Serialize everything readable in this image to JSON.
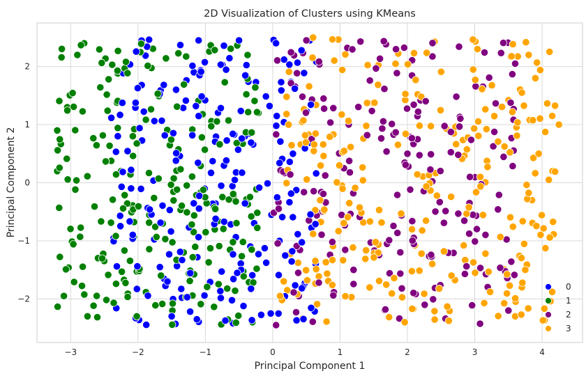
{
  "chart_data": {
    "type": "scatter",
    "title": "2D Visualization of Clusters using KMeans",
    "xlabel": "Principal Component 1",
    "ylabel": "Principal Component 2",
    "xlim": [
      -3.5,
      4.6
    ],
    "ylim": [
      -2.75,
      2.75
    ],
    "xticks": [
      -3,
      -2,
      -1,
      0,
      1,
      2,
      3,
      4
    ],
    "yticks": [
      -2,
      -1,
      0,
      1,
      2
    ],
    "grid": true,
    "background": "#eaeaf2",
    "legend": {
      "placement": "lower-right"
    },
    "series": [
      {
        "name": "0",
        "color": "#0000ff",
        "count": 220,
        "x_range": [
          -2.4,
          0.65
        ],
        "y_range": [
          -2.45,
          2.5
        ],
        "points": [
          [
            -0.5,
            2.45
          ],
          [
            -1.1,
            2.45
          ],
          [
            0.55,
            2.45
          ],
          [
            -0.3,
            -2.4
          ],
          [
            0.1,
            -1.0
          ],
          [
            0.3,
            0.5
          ],
          [
            -1.5,
            -2.3
          ],
          [
            -2.3,
            0.8
          ]
        ]
      },
      {
        "name": "1",
        "color": "#008000",
        "count": 240,
        "x_range": [
          -3.2,
          -0.2
        ],
        "y_range": [
          -2.45,
          2.45
        ],
        "points": [
          [
            -3.2,
            0.9
          ],
          [
            -3.2,
            0.2
          ],
          [
            -3.1,
            -1.95
          ],
          [
            -3.05,
            1.3
          ],
          [
            -2.9,
            2.2
          ],
          [
            -2.8,
            2.4
          ],
          [
            -2.75,
            -2.3
          ],
          [
            -0.3,
            -2.4
          ]
        ]
      },
      {
        "name": "2",
        "color": "#800080",
        "count": 200,
        "x_range": [
          0.0,
          3.6
        ],
        "y_range": [
          -2.45,
          2.45
        ],
        "points": [
          [
            0.05,
            -2.45
          ],
          [
            0.5,
            2.45
          ],
          [
            3.6,
            2.05
          ],
          [
            3.5,
            -2.2
          ],
          [
            2.0,
            0.5
          ],
          [
            1.2,
            -1.5
          ]
        ]
      },
      {
        "name": "3",
        "color": "#ffa500",
        "count": 260,
        "x_range": [
          0.1,
          4.2
        ],
        "y_range": [
          -2.45,
          2.5
        ],
        "points": [
          [
            4.15,
            1.15
          ],
          [
            4.25,
            1.0
          ],
          [
            4.1,
            0.05
          ],
          [
            3.95,
            0.5
          ],
          [
            3.85,
            -0.3
          ],
          [
            3.8,
            2.2
          ],
          [
            3.7,
            1.55
          ],
          [
            3.75,
            -1.5
          ],
          [
            3.7,
            -1.8
          ],
          [
            3.6,
            -2.3
          ],
          [
            0.6,
            2.5
          ],
          [
            3.9,
            1.8
          ]
        ]
      }
    ]
  }
}
